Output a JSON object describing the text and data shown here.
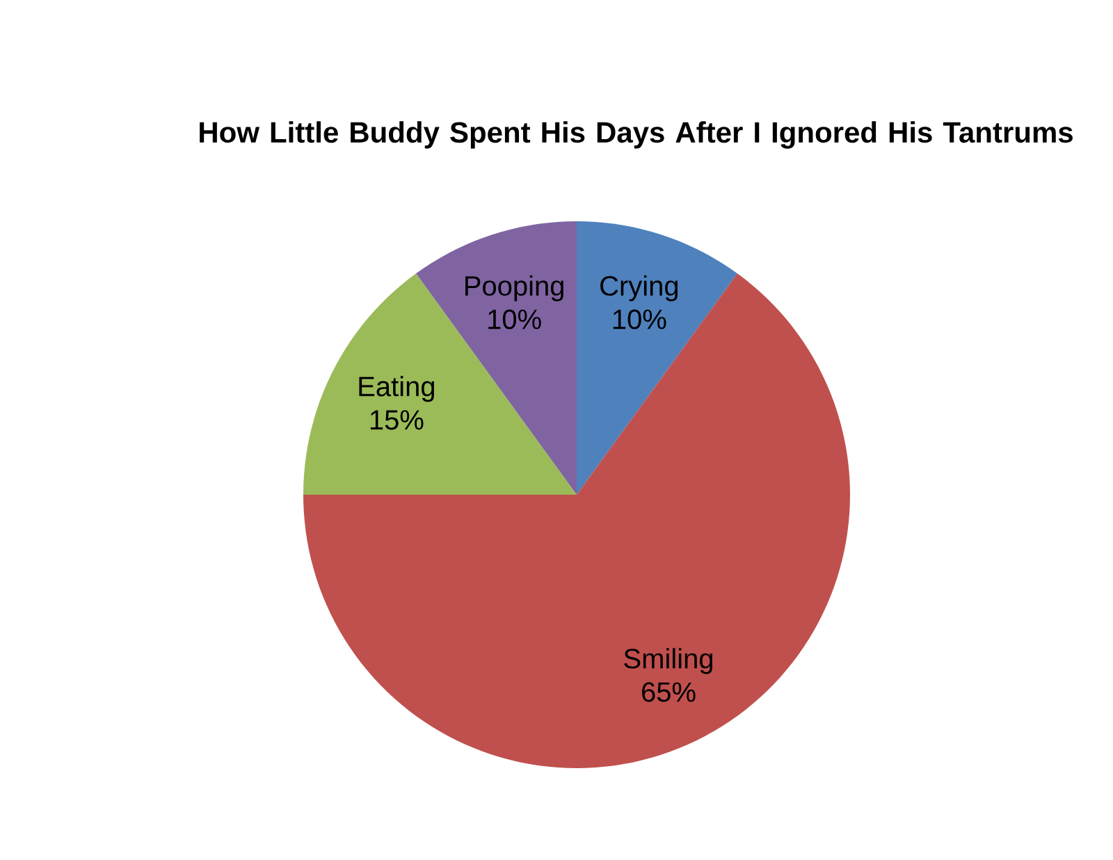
{
  "chart_data": {
    "type": "pie",
    "title": "How Little Buddy Spent His Days After I Ignored His Tantrums",
    "categories": [
      "Crying",
      "Smiling",
      "Eating",
      "Pooping"
    ],
    "values": [
      10,
      65,
      15,
      10
    ],
    "value_labels": [
      "10%",
      "65%",
      "15%",
      "10%"
    ],
    "colors": [
      "#4f81bd",
      "#c0504d",
      "#9bbb59",
      "#8064a2"
    ]
  }
}
